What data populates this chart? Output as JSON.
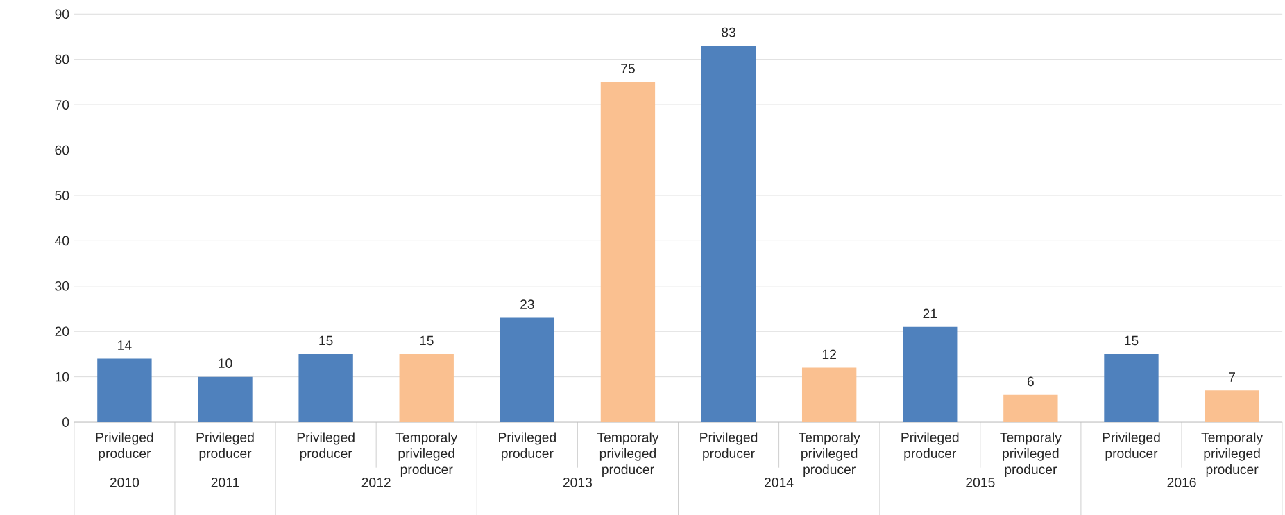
{
  "chart_data": {
    "type": "bar",
    "categories": [
      "Privileged producer",
      "Privileged producer",
      "Privileged producer",
      "Temporaly privileged producer",
      "Privileged producer",
      "Temporaly privileged producer",
      "Privileged producer",
      "Temporaly privileged producer",
      "Privileged producer",
      "Temporaly privileged producer",
      "Privileged producer",
      "Temporaly privileged producer"
    ],
    "values": [
      14,
      10,
      15,
      15,
      23,
      75,
      83,
      12,
      21,
      6,
      15,
      7
    ],
    "colors": [
      "#4f81bd",
      "#4f81bd",
      "#4f81bd",
      "#fac090",
      "#4f81bd",
      "#fac090",
      "#4f81bd",
      "#fac090",
      "#4f81bd",
      "#fac090",
      "#4f81bd",
      "#fac090"
    ],
    "annotations": [
      "2010",
      "2011",
      "2012",
      "2013",
      "2014",
      "2015",
      "2016"
    ],
    "ylim": [
      0,
      90
    ],
    "yticks": [
      0,
      10,
      20,
      30,
      40,
      50,
      60,
      70,
      80,
      90
    ],
    "grid": "y",
    "data_labels": true
  }
}
